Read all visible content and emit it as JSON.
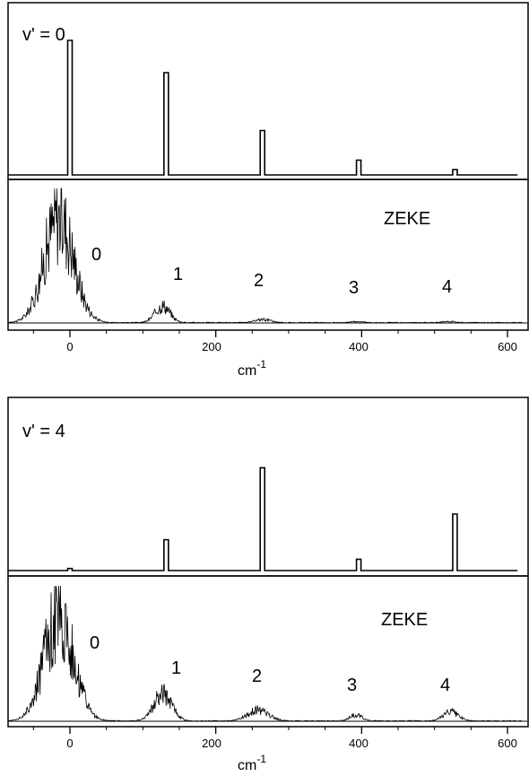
{
  "chart_data": [
    {
      "type": "bar",
      "panel": "simulation",
      "label": "v' = 0",
      "x": [
        0,
        132,
        264,
        396,
        528
      ],
      "values": [
        1.0,
        0.76,
        0.33,
        0.11,
        0.04
      ],
      "xlim": [
        -85,
        620
      ],
      "ylim": [
        0,
        1.1
      ]
    },
    {
      "type": "line",
      "panel": "experiment",
      "label": "ZEKE",
      "xlabel": "cm",
      "xlabel_sup": "-1",
      "xticks": [
        "0",
        "200",
        "400",
        "600"
      ],
      "xtick_values": [
        0,
        200,
        400,
        600
      ],
      "xlim": [
        -85,
        620
      ],
      "ylim": [
        0,
        1.05
      ],
      "band_labels": [
        "0",
        "1",
        "2",
        "3",
        "4"
      ],
      "band_centers": [
        -15,
        127,
        265,
        395,
        520
      ],
      "band_heights": [
        1.0,
        0.16,
        0.03,
        0.01,
        0.01
      ],
      "band_widths": [
        20,
        10,
        10,
        8,
        8
      ]
    },
    {
      "type": "bar",
      "panel": "simulation",
      "label": "v' = 4",
      "x": [
        0,
        132,
        264,
        396,
        528
      ],
      "values": [
        0.02,
        0.3,
        1.0,
        0.11,
        0.55
      ],
      "xlim": [
        -85,
        620
      ],
      "ylim": [
        0,
        1.1
      ]
    },
    {
      "type": "line",
      "panel": "experiment",
      "label": "ZEKE",
      "xlabel": "cm",
      "xlabel_sup": "-1",
      "xticks": [
        "0",
        "200",
        "400",
        "600"
      ],
      "xtick_values": [
        0,
        200,
        400,
        600
      ],
      "xlim": [
        -85,
        620
      ],
      "ylim": [
        0,
        1.05
      ],
      "band_labels": [
        "0",
        "1",
        "2",
        "3",
        "4"
      ],
      "band_centers": [
        -15,
        127,
        258,
        392,
        522
      ],
      "band_heights": [
        1.0,
        0.26,
        0.1,
        0.06,
        0.09
      ],
      "band_widths": [
        20,
        12,
        14,
        8,
        10
      ]
    }
  ]
}
